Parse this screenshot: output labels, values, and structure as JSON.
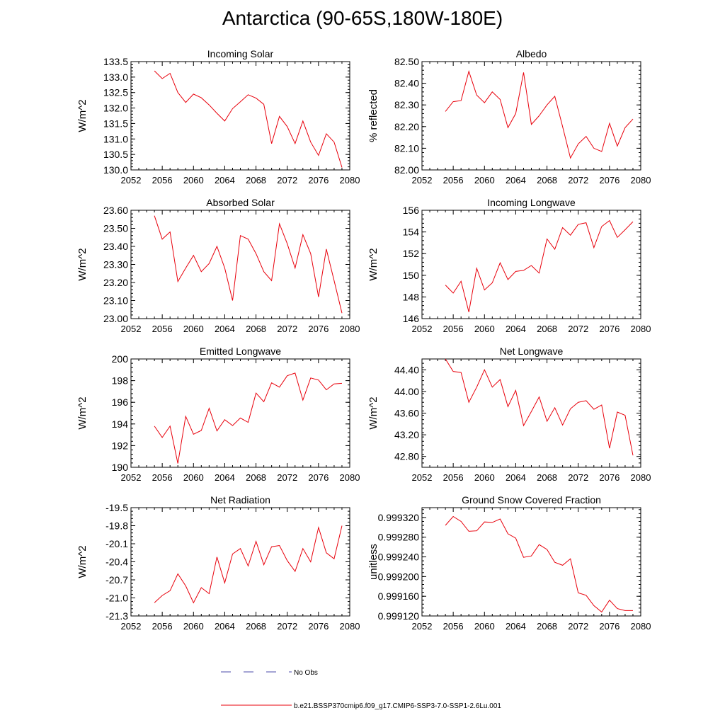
{
  "title": "Antarctica (90-65S,180W-180E)",
  "x_tick_labels": [
    "2052",
    "2056",
    "2060",
    "2064",
    "2068",
    "2072",
    "2076",
    "2080"
  ],
  "chart_data": [
    {
      "type": "line",
      "title": "Incoming Solar",
      "ylabel": "W/m^2",
      "xlim": [
        2052,
        2080
      ],
      "ylim": [
        130.0,
        133.5
      ],
      "yticks": [
        "130.0",
        "130.5",
        "131.0",
        "131.5",
        "132.0",
        "132.5",
        "133.0",
        "133.5"
      ],
      "x": [
        2055,
        2056,
        2057,
        2058,
        2059,
        2060,
        2061,
        2062,
        2063,
        2064,
        2065,
        2066,
        2067,
        2068,
        2069,
        2070,
        2071,
        2072,
        2073,
        2074,
        2075,
        2076,
        2077,
        2078,
        2079
      ],
      "series": [
        {
          "values": [
            133.2,
            132.95,
            133.12,
            132.5,
            132.18,
            132.45,
            132.33,
            132.1,
            131.83,
            131.58,
            131.98,
            132.2,
            132.43,
            132.32,
            132.12,
            130.85,
            131.73,
            131.4,
            130.85,
            131.58,
            130.9,
            130.47,
            131.17,
            130.9,
            130.08
          ]
        }
      ]
    },
    {
      "type": "line",
      "title": "Albedo",
      "ylabel": "% reflected",
      "xlim": [
        2052,
        2080
      ],
      "ylim": [
        82.0,
        82.5
      ],
      "yticks": [
        "82.00",
        "82.10",
        "82.20",
        "82.30",
        "82.40",
        "82.50"
      ],
      "x": [
        2055,
        2056,
        2057,
        2058,
        2059,
        2060,
        2061,
        2062,
        2063,
        2064,
        2065,
        2066,
        2067,
        2068,
        2069,
        2070,
        2071,
        2072,
        2073,
        2074,
        2075,
        2076,
        2077,
        2078,
        2079
      ],
      "series": [
        {
          "values": [
            82.27,
            82.315,
            82.32,
            82.455,
            82.345,
            82.31,
            82.36,
            82.325,
            82.195,
            82.26,
            82.45,
            82.21,
            82.25,
            82.3,
            82.34,
            82.2,
            82.055,
            82.12,
            82.155,
            82.1,
            82.085,
            82.215,
            82.11,
            82.195,
            82.235
          ]
        }
      ]
    },
    {
      "type": "line",
      "title": "Absorbed Solar",
      "ylabel": "W/m^2",
      "xlim": [
        2052,
        2080
      ],
      "ylim": [
        23.0,
        23.6
      ],
      "yticks": [
        "23.00",
        "23.10",
        "23.20",
        "23.30",
        "23.40",
        "23.50",
        "23.60"
      ],
      "x": [
        2055,
        2056,
        2057,
        2058,
        2059,
        2060,
        2061,
        2062,
        2063,
        2064,
        2065,
        2066,
        2067,
        2068,
        2069,
        2070,
        2071,
        2072,
        2073,
        2074,
        2075,
        2076,
        2077,
        2078,
        2079
      ],
      "series": [
        {
          "values": [
            23.57,
            23.44,
            23.48,
            23.205,
            23.28,
            23.35,
            23.26,
            23.305,
            23.4,
            23.28,
            23.1,
            23.46,
            23.44,
            23.36,
            23.26,
            23.21,
            23.525,
            23.415,
            23.28,
            23.465,
            23.36,
            23.12,
            23.385,
            23.21,
            23.03
          ]
        }
      ]
    },
    {
      "type": "line",
      "title": "Incoming Longwave",
      "ylabel": "W/m^2",
      "xlim": [
        2052,
        2080
      ],
      "ylim": [
        146,
        156
      ],
      "yticks": [
        "146",
        "148",
        "150",
        "152",
        "154",
        "156"
      ],
      "x": [
        2055,
        2056,
        2057,
        2058,
        2059,
        2060,
        2061,
        2062,
        2063,
        2064,
        2065,
        2066,
        2067,
        2068,
        2069,
        2070,
        2071,
        2072,
        2073,
        2074,
        2075,
        2076,
        2077,
        2078,
        2079
      ],
      "series": [
        {
          "values": [
            149.1,
            148.35,
            149.45,
            146.6,
            150.65,
            148.65,
            149.3,
            151.15,
            149.6,
            150.35,
            150.45,
            150.9,
            150.2,
            153.35,
            152.4,
            154.4,
            153.7,
            154.7,
            154.85,
            152.55,
            154.5,
            155.05,
            153.5,
            154.2,
            154.95
          ]
        }
      ]
    },
    {
      "type": "line",
      "title": "Emitted Longwave",
      "ylabel": "W/m^2",
      "xlim": [
        2052,
        2080
      ],
      "ylim": [
        190,
        200
      ],
      "yticks": [
        "190",
        "192",
        "194",
        "196",
        "198",
        "200"
      ],
      "x": [
        2055,
        2056,
        2057,
        2058,
        2059,
        2060,
        2061,
        2062,
        2063,
        2064,
        2065,
        2066,
        2067,
        2068,
        2069,
        2070,
        2071,
        2072,
        2073,
        2074,
        2075,
        2076,
        2077,
        2078,
        2079
      ],
      "series": [
        {
          "values": [
            193.8,
            192.75,
            193.8,
            190.35,
            194.7,
            193.05,
            193.4,
            195.45,
            193.35,
            194.4,
            193.85,
            194.55,
            194.15,
            196.85,
            196.05,
            197.8,
            197.4,
            198.45,
            198.7,
            196.2,
            198.25,
            198.05,
            197.15,
            197.7,
            197.75
          ]
        }
      ]
    },
    {
      "type": "line",
      "title": "Net Longwave",
      "ylabel": "W/m^2",
      "xlim": [
        2052,
        2080
      ],
      "ylim": [
        42.6,
        44.6
      ],
      "yticks": [
        "42.80",
        "43.20",
        "43.60",
        "44.00",
        "44.40"
      ],
      "x": [
        2055,
        2056,
        2057,
        2058,
        2059,
        2060,
        2061,
        2062,
        2063,
        2064,
        2065,
        2066,
        2067,
        2068,
        2069,
        2070,
        2071,
        2072,
        2073,
        2074,
        2075,
        2076,
        2077,
        2078,
        2079
      ],
      "series": [
        {
          "values": [
            44.6,
            44.37,
            44.35,
            43.8,
            44.08,
            44.4,
            44.08,
            44.22,
            43.72,
            44.02,
            43.37,
            43.63,
            43.9,
            43.45,
            43.7,
            43.38,
            43.68,
            43.8,
            43.83,
            43.67,
            43.75,
            42.95,
            43.62,
            43.56,
            42.82
          ]
        }
      ]
    },
    {
      "type": "line",
      "title": "Net Radiation",
      "ylabel": "W/m^2",
      "xlim": [
        2052,
        2080
      ],
      "ylim": [
        -21.3,
        -19.5
      ],
      "yticks": [
        "-21.3",
        "-21.0",
        "-20.7",
        "-20.4",
        "-20.1",
        "-19.8",
        "-19.5"
      ],
      "x": [
        2055,
        2056,
        2057,
        2058,
        2059,
        2060,
        2061,
        2062,
        2063,
        2064,
        2065,
        2066,
        2067,
        2068,
        2069,
        2070,
        2071,
        2072,
        2073,
        2074,
        2075,
        2076,
        2077,
        2078,
        2079
      ],
      "series": [
        {
          "values": [
            -21.08,
            -20.96,
            -20.88,
            -20.6,
            -20.8,
            -21.08,
            -20.83,
            -20.93,
            -20.32,
            -20.75,
            -20.27,
            -20.18,
            -20.47,
            -20.06,
            -20.45,
            -20.15,
            -20.13,
            -20.38,
            -20.56,
            -20.18,
            -20.4,
            -19.83,
            -20.25,
            -20.35,
            -19.8
          ]
        }
      ]
    },
    {
      "type": "line",
      "title": "Ground Snow Covered Fraction",
      "ylabel": "unitless",
      "xlim": [
        2052,
        2080
      ],
      "ylim": [
        0.99912,
        0.99934
      ],
      "yticks": [
        "0.999120",
        "0.999160",
        "0.999200",
        "0.999240",
        "0.999280",
        "0.999320"
      ],
      "x": [
        2055,
        2056,
        2057,
        2058,
        2059,
        2060,
        2061,
        2062,
        2063,
        2064,
        2065,
        2066,
        2067,
        2068,
        2069,
        2070,
        2071,
        2072,
        2073,
        2074,
        2075,
        2076,
        2077,
        2078,
        2079
      ],
      "series": [
        {
          "values": [
            0.999304,
            0.999322,
            0.999312,
            0.999292,
            0.999293,
            0.999311,
            0.99931,
            0.999317,
            0.999287,
            0.999278,
            0.999239,
            0.999242,
            0.999265,
            0.999255,
            0.999229,
            0.999223,
            0.999236,
            0.999167,
            0.999162,
            0.999141,
            0.999128,
            0.999152,
            0.999135,
            0.999131,
            0.999131
          ]
        }
      ]
    }
  ],
  "legend": [
    {
      "label": "No Obs",
      "color": "#4a4aa8",
      "style": "dashed"
    },
    {
      "label": "b.e21.BSSP370cmip6.f09_g17.CMIP6-SSP3-7.0-SSP1-2.6Lu.001",
      "color": "#e8000b",
      "style": "solid"
    }
  ]
}
